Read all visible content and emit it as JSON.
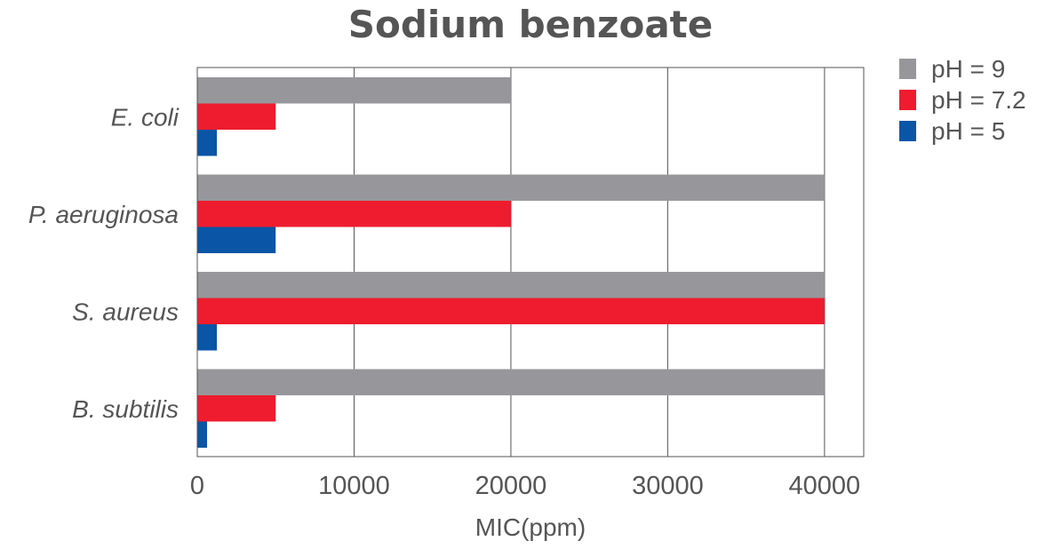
{
  "chart_data": {
    "type": "bar",
    "orientation": "horizontal",
    "title": "Sodium benzoate",
    "xlabel": "MIC(ppm)",
    "ylabel": "",
    "xlim": [
      0,
      42500
    ],
    "xticks": [
      0,
      10000,
      20000,
      30000,
      40000
    ],
    "xtick_labels": [
      "0",
      "10000",
      "20000",
      "30000",
      "40000"
    ],
    "grid": "vertical",
    "legend_position": "top-right",
    "categories": [
      "E. coli",
      "P. aeruginosa",
      "S. aureus",
      "B. subtilis"
    ],
    "series": [
      {
        "name": "pH = 9",
        "color": "#97979b",
        "values": [
          20000,
          40000,
          40000,
          40000
        ]
      },
      {
        "name": "pH = 7.2",
        "color": "#ee1c2e",
        "values": [
          5000,
          20000,
          40000,
          5000
        ]
      },
      {
        "name": "pH = 5",
        "color": "#0a55a5",
        "values": [
          1250,
          5000,
          1250,
          625
        ]
      }
    ]
  }
}
